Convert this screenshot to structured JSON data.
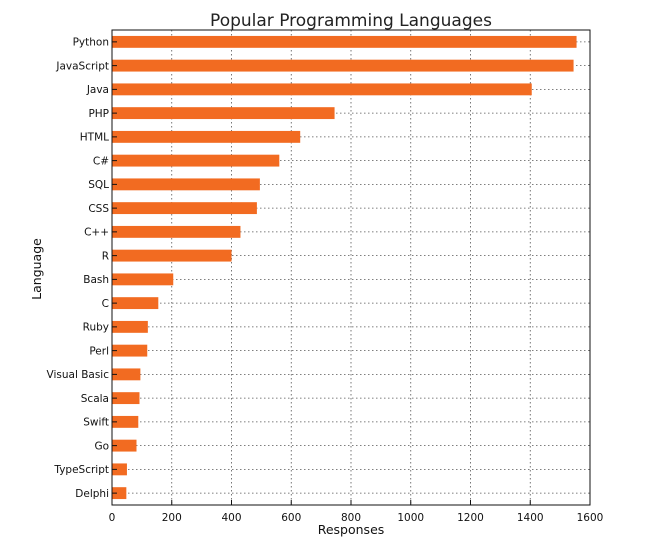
{
  "chart_data": {
    "type": "bar",
    "orientation": "horizontal",
    "title": "Popular Programming Languages",
    "xlabel": "Responses",
    "ylabel": "Language",
    "xlim": [
      0,
      1600
    ],
    "xticks": [
      0,
      200,
      400,
      600,
      800,
      1000,
      1200,
      1400,
      1600
    ],
    "grid": true,
    "bar_color": "#f26b21",
    "categories": [
      "Python",
      "JavaScript",
      "Java",
      "PHP",
      "HTML",
      "C#",
      "SQL",
      "CSS",
      "C++",
      "R",
      "Bash",
      "C",
      "Ruby",
      "Perl",
      "Visual Basic",
      "Scala",
      "Swift",
      "Go",
      "TypeScript",
      "Delphi"
    ],
    "values": [
      1555,
      1545,
      1405,
      745,
      630,
      560,
      495,
      485,
      430,
      400,
      205,
      155,
      120,
      118,
      95,
      92,
      88,
      82,
      50,
      48
    ]
  }
}
